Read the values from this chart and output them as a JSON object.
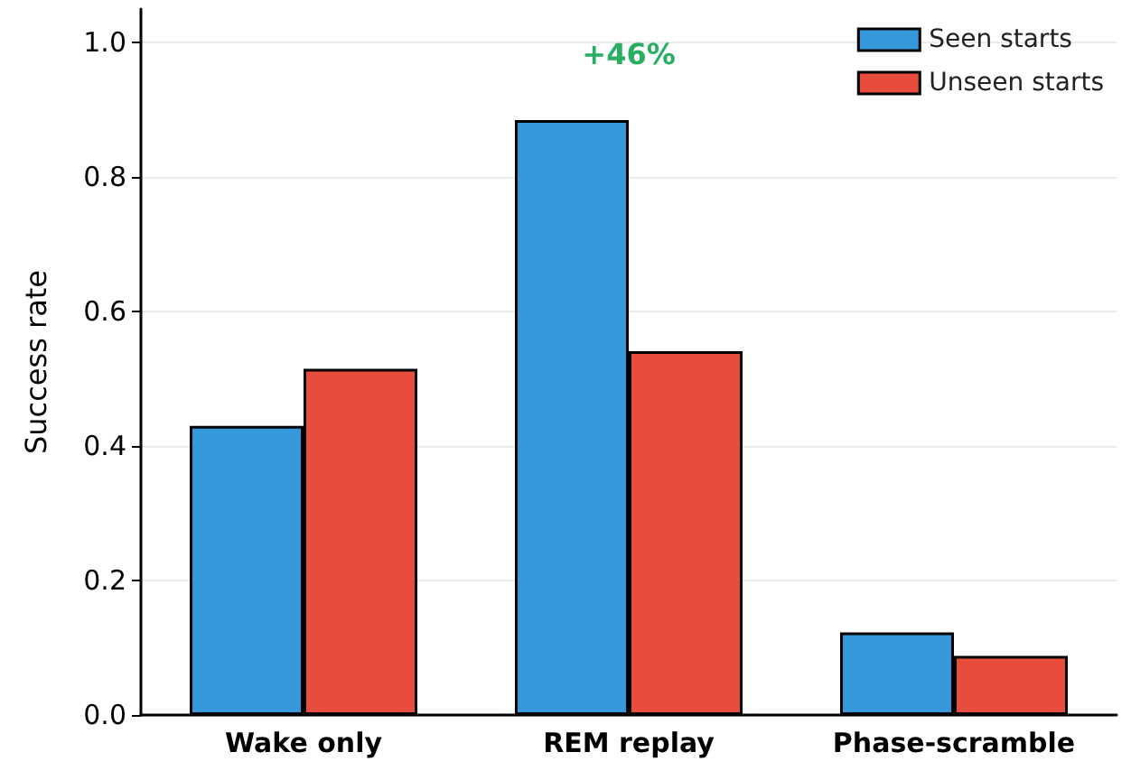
{
  "chart_data": {
    "type": "bar",
    "ylabel": "Success rate",
    "categories": [
      "Wake only",
      "REM replay",
      "Phase-scramble"
    ],
    "series": [
      {
        "name": "Seen starts",
        "color": "#3498db",
        "values": [
          0.43,
          0.885,
          0.123
        ]
      },
      {
        "name": "Unseen starts",
        "color": "#e74c3c",
        "values": [
          0.515,
          0.541,
          0.088
        ]
      }
    ],
    "ylim": [
      0,
      1.05
    ],
    "yticks": [
      {
        "value": 0,
        "label": "0.0"
      },
      {
        "value": 0.2,
        "label": "0.2"
      },
      {
        "value": 0.4,
        "label": "0.4"
      },
      {
        "value": 0.6,
        "label": "0.6"
      },
      {
        "value": 0.8,
        "label": "0.8"
      },
      {
        "value": 1,
        "label": "1.0"
      }
    ],
    "grid": "y",
    "legend": "top right",
    "annotations": [
      "+46%"
    ]
  }
}
